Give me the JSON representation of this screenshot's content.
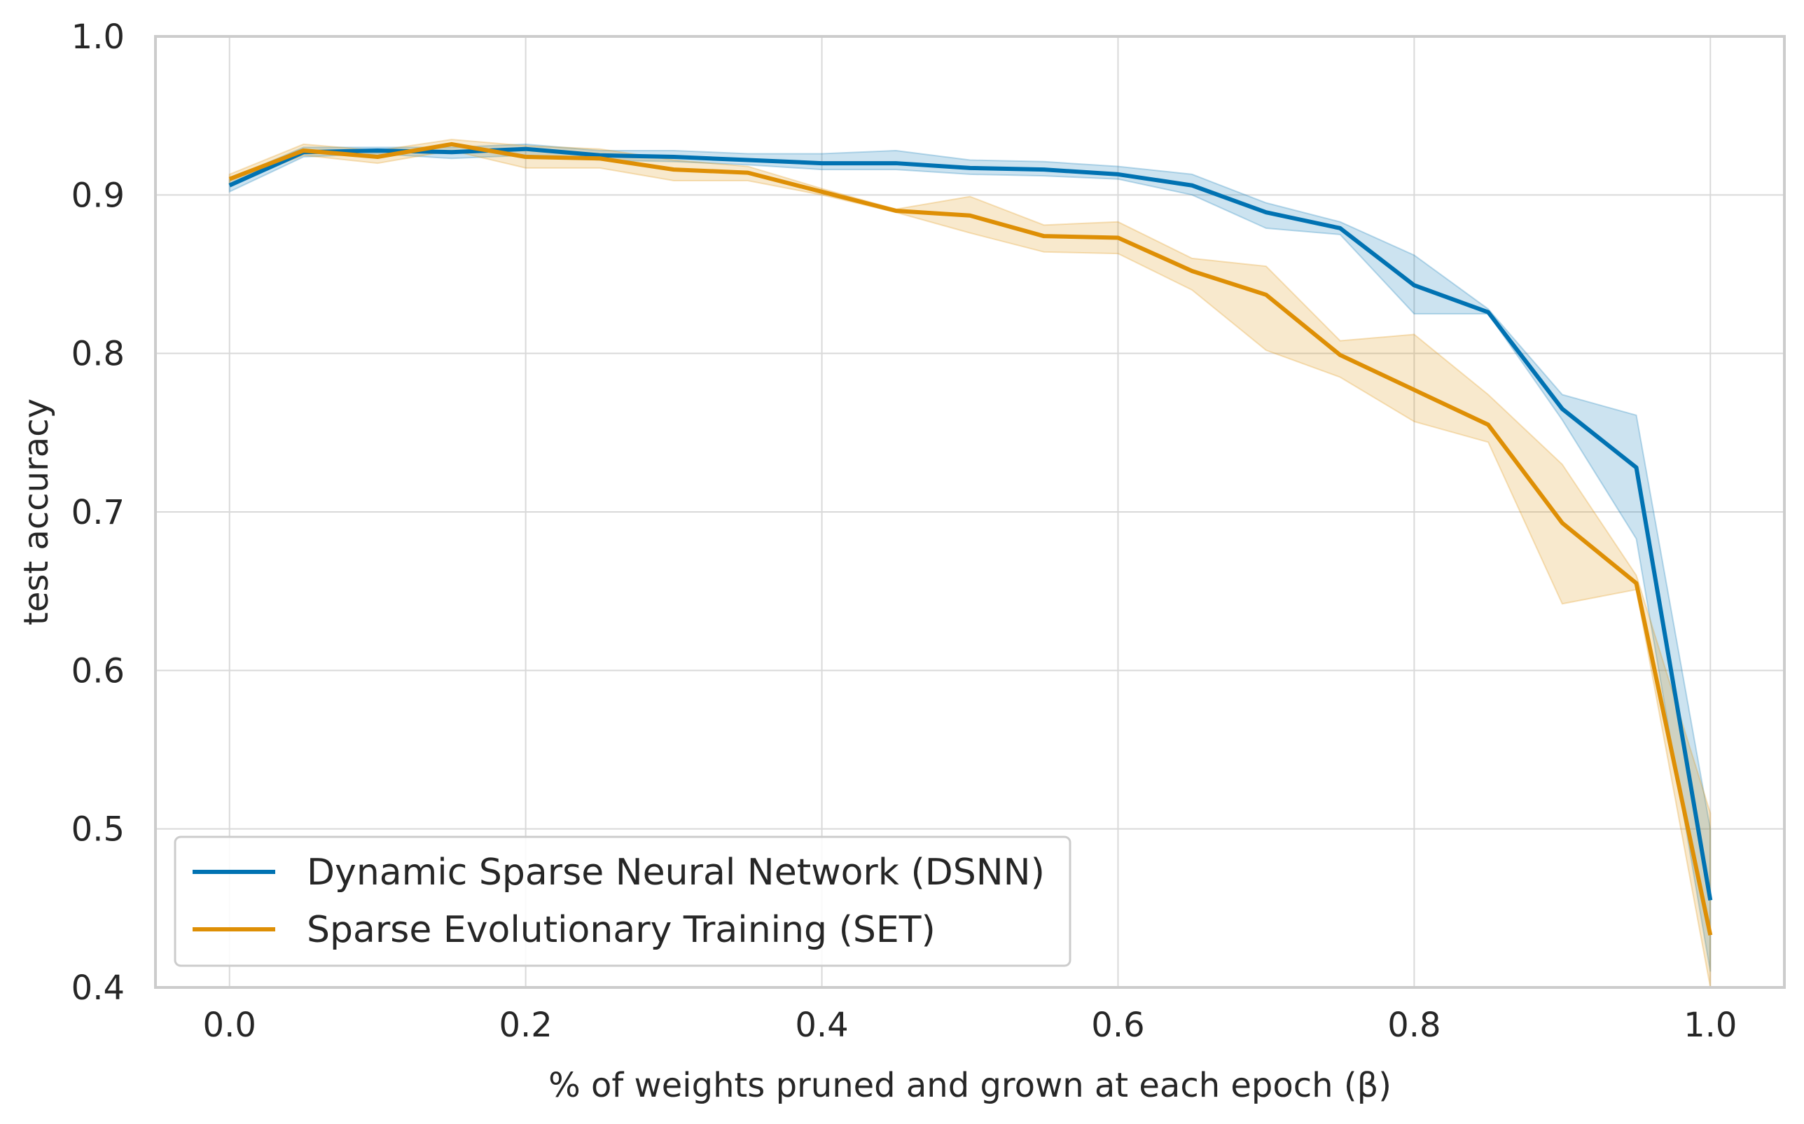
{
  "chart_data": {
    "type": "line",
    "title": "",
    "xlabel": "% of weights pruned and grown at each epoch (β)",
    "ylabel": "test accuracy",
    "xlim": [
      -0.05,
      1.05
    ],
    "ylim": [
      0.4,
      1.0
    ],
    "xticks": [
      "0.0",
      "0.2",
      "0.4",
      "0.6",
      "0.8",
      "1.0"
    ],
    "yticks": [
      "0.4",
      "0.5",
      "0.6",
      "0.7",
      "0.8",
      "0.9",
      "1.0"
    ],
    "grid": true,
    "legend_position": "lower-left",
    "x": [
      0.0,
      0.05,
      0.1,
      0.15,
      0.2,
      0.25,
      0.3,
      0.35,
      0.4,
      0.45,
      0.5,
      0.55,
      0.6,
      0.65,
      0.7,
      0.75,
      0.8,
      0.85,
      0.9,
      0.95,
      1.0
    ],
    "series": [
      {
        "name": "Dynamic Sparse Neural Network (DSNN)",
        "color": "#0072b2",
        "values": [
          0.906,
          0.927,
          0.928,
          0.927,
          0.929,
          0.925,
          0.924,
          0.922,
          0.92,
          0.92,
          0.917,
          0.916,
          0.913,
          0.906,
          0.889,
          0.879,
          0.843,
          0.826,
          0.765,
          0.728,
          0.455
        ],
        "lower": [
          0.902,
          0.924,
          0.926,
          0.923,
          0.925,
          0.922,
          0.921,
          0.919,
          0.916,
          0.916,
          0.913,
          0.912,
          0.91,
          0.9,
          0.879,
          0.875,
          0.825,
          0.825,
          0.758,
          0.683,
          0.41
        ],
        "upper": [
          0.91,
          0.93,
          0.93,
          0.93,
          0.932,
          0.928,
          0.928,
          0.926,
          0.926,
          0.928,
          0.922,
          0.921,
          0.918,
          0.913,
          0.895,
          0.883,
          0.862,
          0.828,
          0.774,
          0.761,
          0.5
        ]
      },
      {
        "name": "Sparse Evolutionary Training (SET)",
        "color": "#de8f05",
        "values": [
          0.91,
          0.928,
          0.924,
          0.932,
          0.924,
          0.923,
          0.916,
          0.914,
          0.902,
          0.89,
          0.887,
          0.874,
          0.873,
          0.852,
          0.837,
          0.799,
          0.777,
          0.755,
          0.693,
          0.655,
          0.433
        ],
        "lower": [
          0.907,
          0.925,
          0.92,
          0.928,
          0.917,
          0.917,
          0.909,
          0.909,
          0.9,
          0.889,
          0.876,
          0.864,
          0.863,
          0.84,
          0.802,
          0.785,
          0.757,
          0.744,
          0.642,
          0.651,
          0.4
        ],
        "upper": [
          0.913,
          0.932,
          0.928,
          0.935,
          0.931,
          0.929,
          0.922,
          0.918,
          0.904,
          0.891,
          0.899,
          0.881,
          0.883,
          0.86,
          0.855,
          0.808,
          0.812,
          0.774,
          0.73,
          0.66,
          0.51
        ]
      }
    ]
  }
}
